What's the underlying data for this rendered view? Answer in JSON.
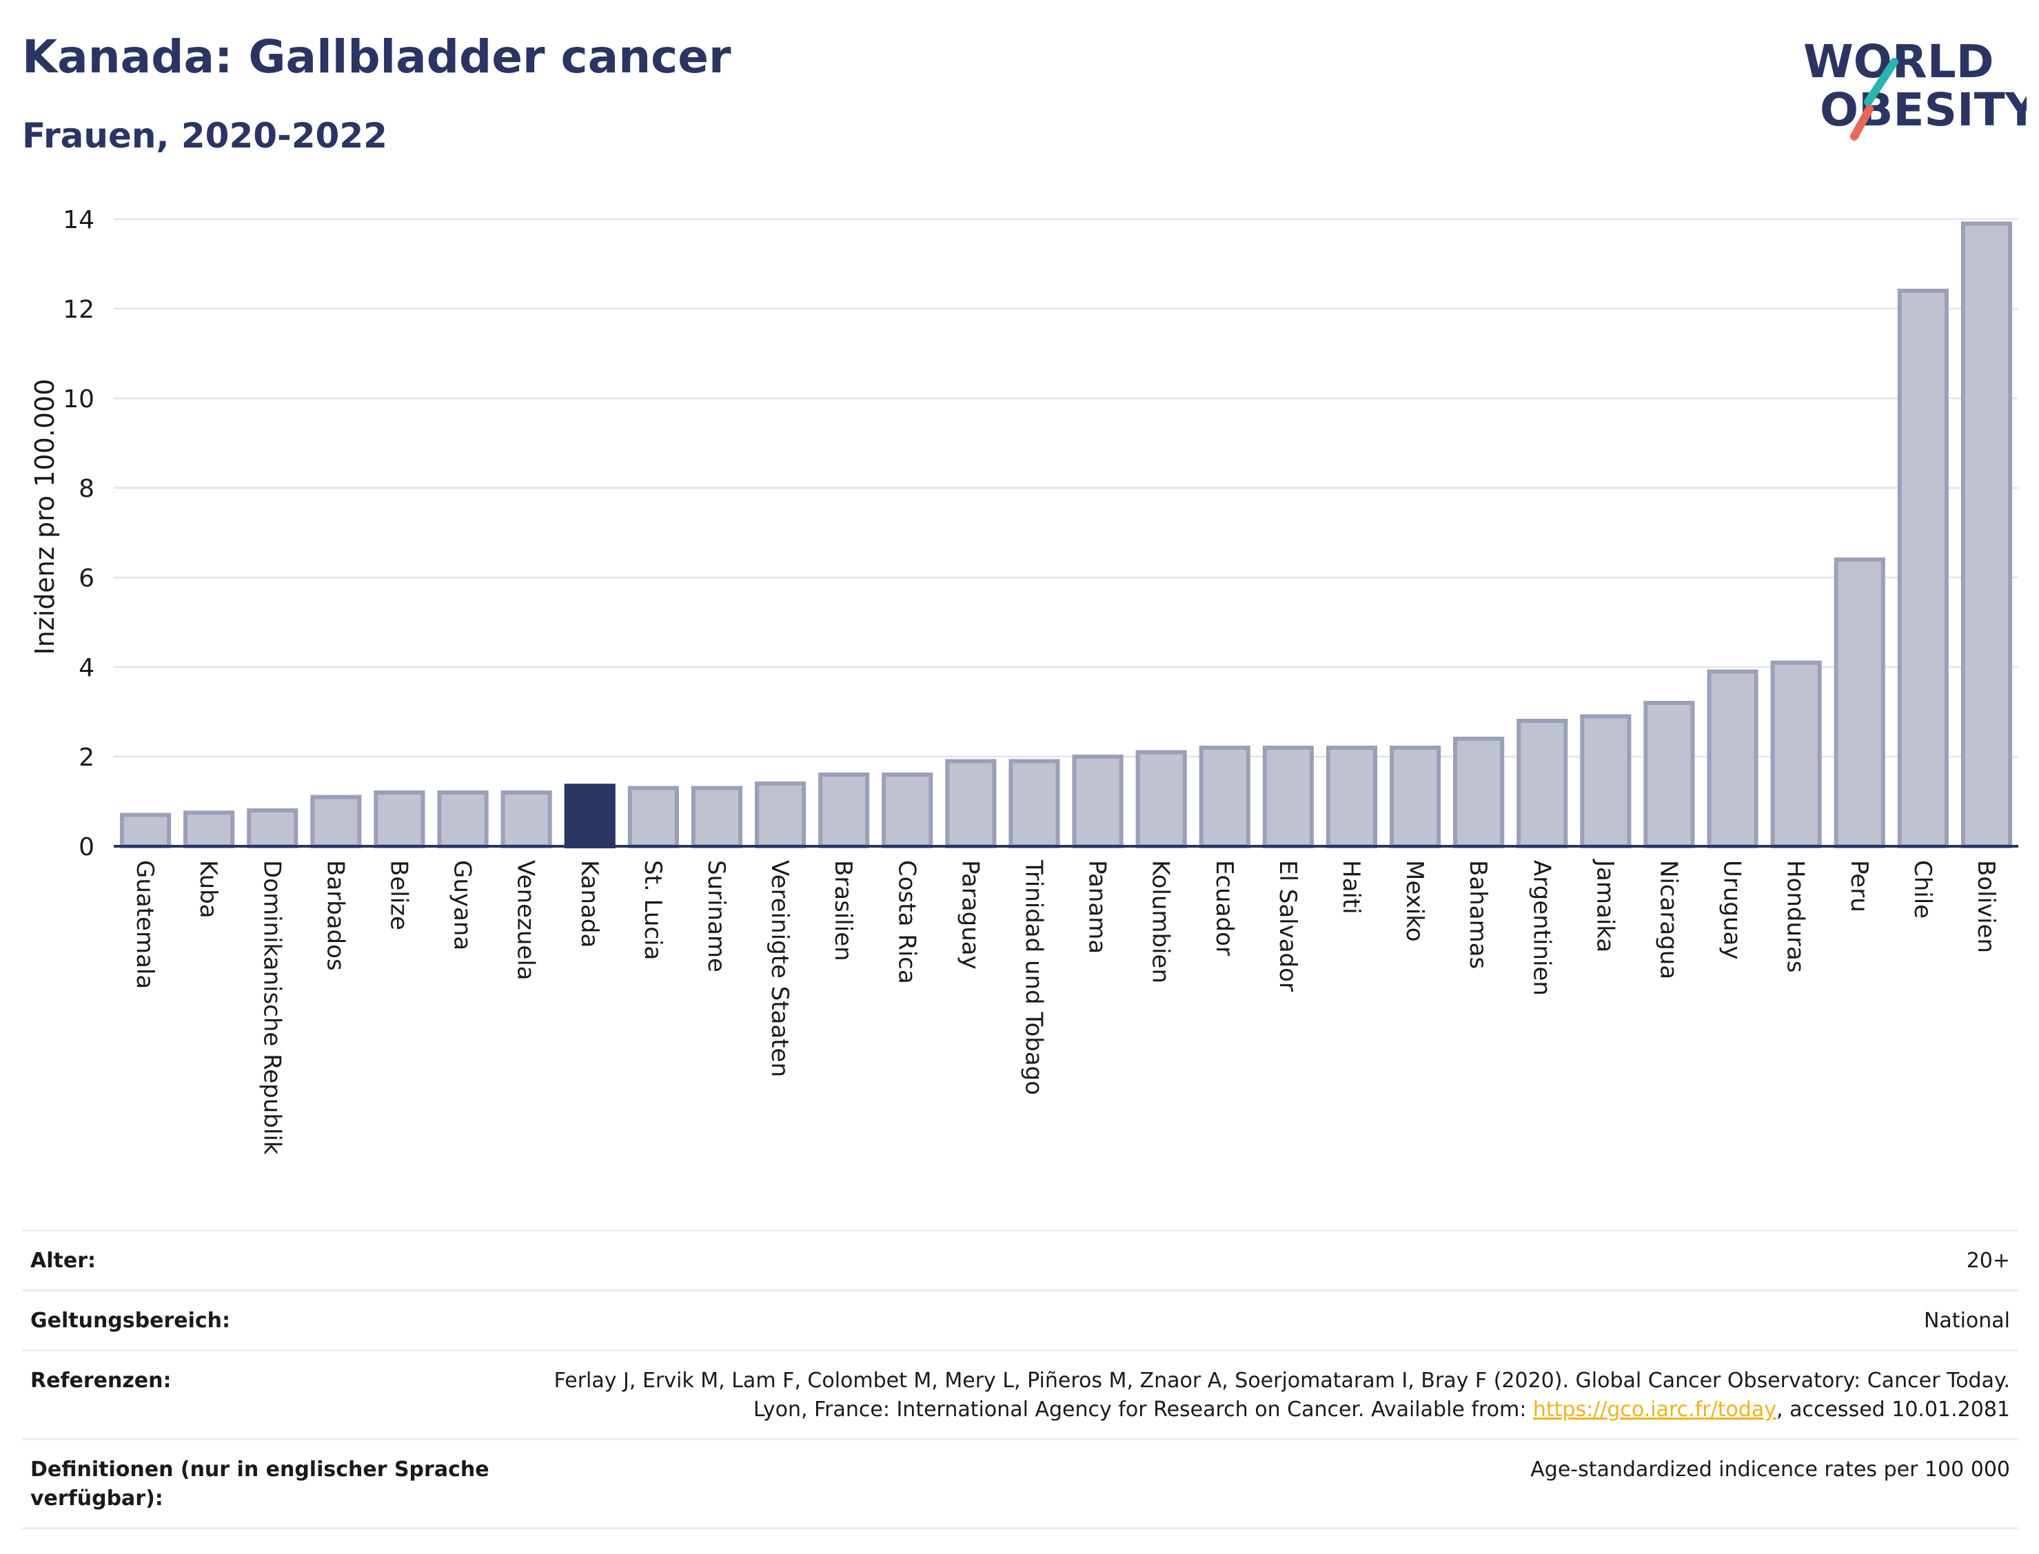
{
  "header": {
    "title": "Kanada: Gallbladder cancer",
    "subtitle": "Frauen, 2020-2022"
  },
  "logo": {
    "text_line1": "WORLD",
    "text_line2": "OBESITY",
    "colors": {
      "text": "#2a3563",
      "slash_top": "#2ab5b0",
      "slash_bottom": "#e8685a"
    }
  },
  "chart_data": {
    "type": "bar",
    "title": "",
    "xlabel": "",
    "ylabel": "Inzidenz pro 100.000",
    "ylim": [
      0,
      14
    ],
    "yticks": [
      0,
      2,
      4,
      6,
      8,
      10,
      12,
      14
    ],
    "grid": true,
    "highlight": "Kanada",
    "colors": {
      "bar": "#bfc2d0",
      "bar_border": "#9aa0b8",
      "highlight": "#2a3563",
      "grid": "#e6e7ec",
      "axis": "#2a3563"
    },
    "categories": [
      "Guatemala",
      "Kuba",
      "Dominikanische Republik",
      "Barbados",
      "Belize",
      "Guyana",
      "Venezuela",
      "Kanada",
      "St. Lucia",
      "Suriname",
      "Vereinigte Staaten",
      "Brasilien",
      "Costa Rica",
      "Paraguay",
      "Trinidad und Tobago",
      "Panama",
      "Kolumbien",
      "Ecuador",
      "El Salvador",
      "Haiti",
      "Mexiko",
      "Bahamas",
      "Argentinien",
      "Jamaika",
      "Nicaragua",
      "Uruguay",
      "Honduras",
      "Peru",
      "Chile",
      "Bolivien"
    ],
    "values": [
      0.7,
      0.75,
      0.8,
      1.1,
      1.2,
      1.2,
      1.2,
      1.35,
      1.3,
      1.3,
      1.4,
      1.6,
      1.6,
      1.9,
      1.9,
      2.0,
      2.1,
      2.2,
      2.2,
      2.2,
      2.2,
      2.4,
      2.8,
      2.9,
      3.2,
      3.9,
      4.1,
      6.4,
      12.4,
      13.9
    ]
  },
  "info": {
    "rows": [
      {
        "label": "Alter:",
        "value": "20+"
      },
      {
        "label": "Geltungsbereich:",
        "value": "National"
      },
      {
        "label": "Referenzen:",
        "value_pre": "Ferlay J, Ervik M, Lam F, Colombet M, Mery L, Piñeros M, Znaor A, Soerjomataram I, Bray F (2020). Global Cancer Observatory: Cancer Today. Lyon, France: International Agency for Research on Cancer. Available from: ",
        "link": "https://gco.iarc.fr/today",
        "value_post": ", accessed 10.01.2081"
      },
      {
        "label": "Definitionen (nur in englischer Sprache verfügbar):",
        "value": "Age-standardized indicence rates per 100 000"
      }
    ]
  }
}
